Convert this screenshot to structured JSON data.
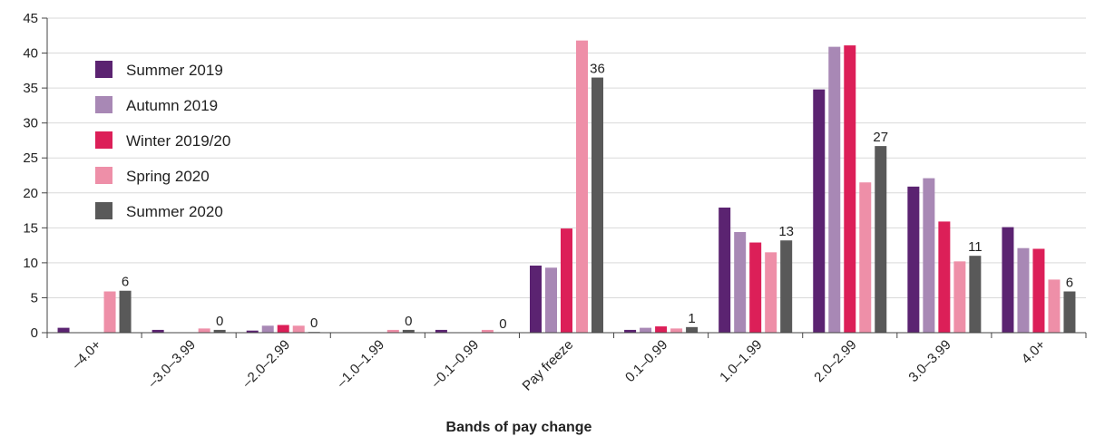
{
  "chart_data": {
    "type": "bar",
    "title": "",
    "xlabel": "Bands of pay change",
    "ylabel": "",
    "ylim": [
      0,
      45
    ],
    "yticks": [
      0,
      5,
      10,
      15,
      20,
      25,
      30,
      35,
      40,
      45
    ],
    "grid": "horizontal",
    "legend_position": "top-left",
    "categories": [
      "–4.0+",
      "–3.0–3.99",
      "–2.0–2.99",
      "–1.0–1.99",
      "–0.1–0.99",
      "Pay freeze",
      "0.1–0.99",
      "1.0–1.99",
      "2.0–2.99",
      "3.0–3.99",
      "4.0+"
    ],
    "series": [
      {
        "name": "Summer 2019",
        "color": "#5b2371",
        "values": [
          0.7,
          0.4,
          0.3,
          0,
          0.4,
          9.6,
          0.4,
          17.9,
          34.8,
          20.9,
          15.1
        ]
      },
      {
        "name": "Autumn 2019",
        "color": "#a888b5",
        "values": [
          0,
          0,
          1.0,
          0,
          0,
          9.3,
          0.7,
          14.4,
          40.9,
          22.1,
          12.1
        ]
      },
      {
        "name": "Winter 2019/20",
        "color": "#dc1f58",
        "values": [
          0,
          0,
          1.1,
          0,
          0,
          14.9,
          0.9,
          12.9,
          41.1,
          15.9,
          12.0
        ]
      },
      {
        "name": "Spring 2020",
        "color": "#ee8fa8",
        "values": [
          5.9,
          0.6,
          1.0,
          0.4,
          0.4,
          41.8,
          0.6,
          11.5,
          21.5,
          10.2,
          7.6
        ]
      },
      {
        "name": "Summer 2020",
        "color": "#595959",
        "values": [
          6.0,
          0.4,
          0.1,
          0.4,
          0,
          36.5,
          0.8,
          13.2,
          26.7,
          11.0,
          5.9
        ]
      }
    ],
    "data_labels": {
      "series": "Summer 2020",
      "values": [
        "6",
        "0",
        "0",
        "0",
        "0",
        "36",
        "1",
        "13",
        "27",
        "11",
        "6"
      ]
    }
  }
}
